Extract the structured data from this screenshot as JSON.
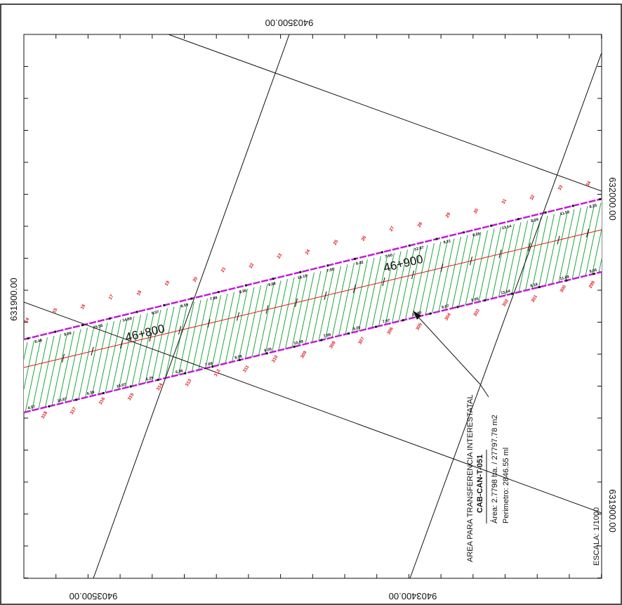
{
  "coordinates": {
    "top": "9403500.00",
    "bottom_left": "9403500.00",
    "bottom_right": "9403400.00",
    "left": "631900.00",
    "right_top": "632000.00",
    "right_bottom": "631900.00"
  },
  "stations": [
    "46+800",
    "46+900"
  ],
  "lots_top": [
    "14",
    "15",
    "16",
    "17",
    "18",
    "19",
    "20",
    "21",
    "22",
    "23",
    "24",
    "25",
    "26",
    "27",
    "28",
    "29",
    "30",
    "31",
    "32",
    "33",
    "34"
  ],
  "lots_bottom": [
    "318",
    "317",
    "316",
    "315",
    "314",
    "313",
    "312",
    "311",
    "310",
    "309",
    "308",
    "307",
    "306",
    "305",
    "304",
    "303",
    "302",
    "301",
    "300",
    "299"
  ],
  "dists_top": [
    "6.46",
    "9.09",
    "15.53",
    "14.69",
    "9.37",
    "8.59",
    "7.89",
    "8.36",
    "9.08",
    "10.19",
    "7.90",
    "8.42",
    "7.60",
    "12.87",
    "8.21",
    "8.69",
    "13.14",
    "8.29",
    "11.53",
    "8.23"
  ],
  "dists_bottom": [
    "4.57",
    "10.87",
    "6.39",
    "10.07",
    "6.25",
    "6.36",
    "7.69",
    "8.36",
    "8.05",
    "10.39",
    "7.99",
    "9.25",
    "7.97",
    "12.80",
    "9.07",
    "9.05",
    "13.54",
    "8.18",
    "11.69",
    "8.56"
  ],
  "info": {
    "title": "AREA PARA TRANSFERENCIA INTERESTATAL",
    "code": "CAB-CAN-T-051",
    "area": "Área: 2.7798 ha. / 27797.78 m2",
    "perimeter": "Perimetro: 2846.55 ml"
  },
  "scale": "ESCALA: 1/1000",
  "colors": {
    "corridor_fill": "#ffffff",
    "hatch": "#1ea83a",
    "boundary": "#c21bd6",
    "centerline": "#e0141a",
    "lot_number": "#e0141a",
    "grid_line": "#111111"
  }
}
